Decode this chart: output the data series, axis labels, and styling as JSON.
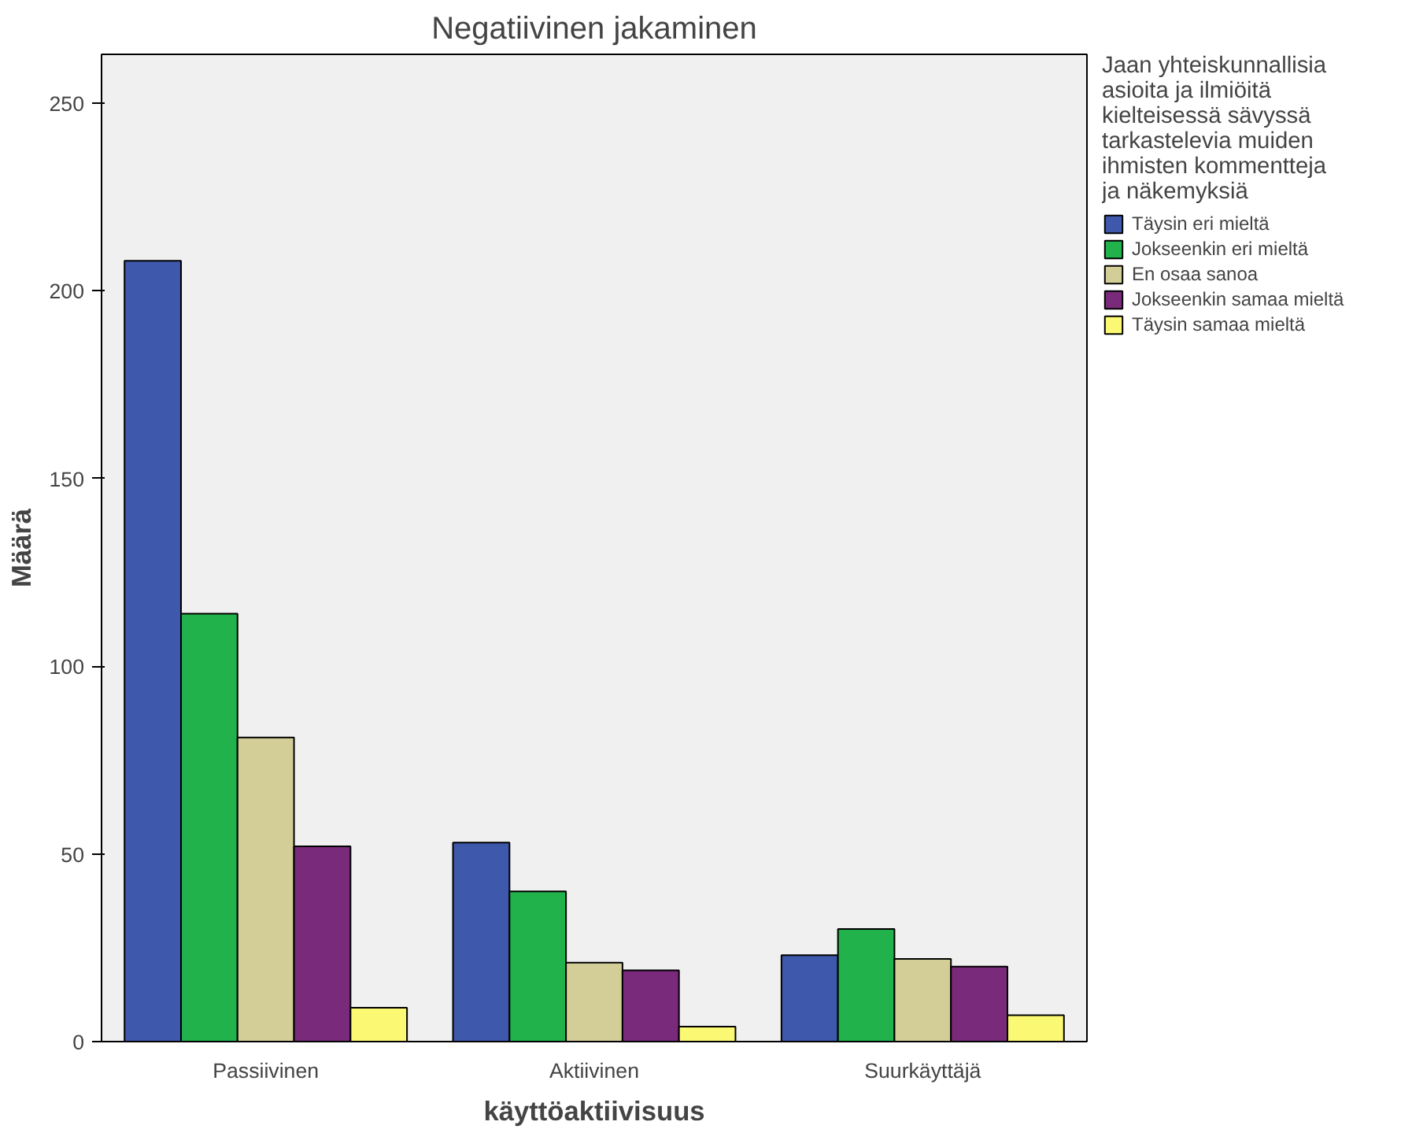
{
  "chart_data": {
    "type": "bar",
    "title": "Negatiivinen jakaminen",
    "xlabel": "käyttöaktiivisuus",
    "ylabel": "Määrä",
    "legend_title": "Jaan yhteiskunnallisia asioita ja ilmiöitä kielteisessä sävyssä tarkastelevia muiden ihmisten kommentteja ja näkemyksiä",
    "categories": [
      "Passiivinen",
      "Aktiivinen",
      "Suurkäyttäjä"
    ],
    "series": [
      {
        "name": "Täysin eri mieltä",
        "color": "#3e58ac",
        "values": [
          208,
          53,
          23
        ]
      },
      {
        "name": "Jokseenkin eri mieltä",
        "color": "#21b24b",
        "values": [
          114,
          40,
          30
        ]
      },
      {
        "name": "En osaa sanoa",
        "color": "#d3ce97",
        "values": [
          81,
          21,
          22
        ]
      },
      {
        "name": "Jokseenkin samaa mieltä",
        "color": "#792a7a",
        "values": [
          52,
          19,
          20
        ]
      },
      {
        "name": "Täysin samaa mieltä",
        "color": "#fbf873",
        "values": [
          9,
          4,
          7
        ]
      }
    ],
    "ylim": [
      0,
      263
    ],
    "yticks": [
      0,
      50,
      100,
      150,
      200,
      250
    ],
    "grid": false,
    "legend": "right"
  }
}
